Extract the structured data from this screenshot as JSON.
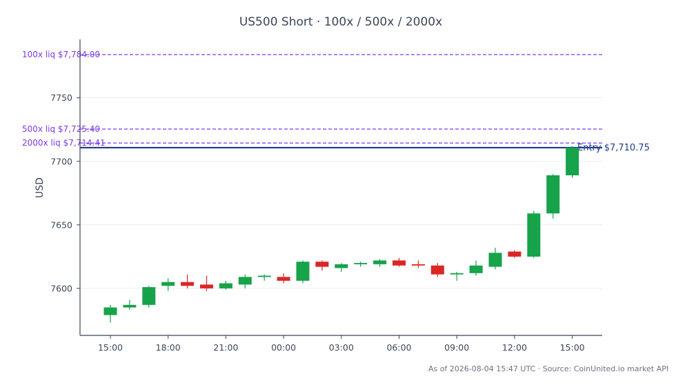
{
  "colors": {
    "up": "#16a34a",
    "down": "#dc2626",
    "liq": "#7c3aed",
    "entry": "#1e3a8a",
    "text": "#3b4557",
    "footer": "#6b7280",
    "grid": "#e5e7eb",
    "axis": "#3b4557"
  },
  "chart_data": {
    "type": "candlestick",
    "title": "US500 Short · 100x / 500x / 2000x",
    "ylabel": "USD",
    "footer": "As of 2026-08-04 15:47 UTC · Source: CoinUnited.io market API",
    "ylim": [
      7563,
      7796
    ],
    "y_ticks": [
      7600,
      7650,
      7700,
      7750
    ],
    "x_ticks": [
      "15:00",
      "18:00",
      "21:00",
      "00:00",
      "03:00",
      "06:00",
      "09:00",
      "12:00",
      "15:00"
    ],
    "x_tick_candle_index": [
      0,
      3,
      6,
      9,
      12,
      15,
      18,
      21,
      24
    ],
    "grid": true,
    "levels": [
      {
        "label": "100x liq $7,784.00",
        "value": 7784.0,
        "kind": "liq"
      },
      {
        "label": "500x liq $7,725.40",
        "value": 7725.4,
        "kind": "liq"
      },
      {
        "label": "2000x liq $7,714.41",
        "value": 7714.41,
        "kind": "liq"
      },
      {
        "label": "Entry $7,710.75",
        "value": 7710.75,
        "kind": "entry"
      }
    ],
    "candles": [
      {
        "o": 7579,
        "h": 7587,
        "l": 7573,
        "c": 7585
      },
      {
        "o": 7585,
        "h": 7591,
        "l": 7583,
        "c": 7587
      },
      {
        "o": 7587,
        "h": 7602,
        "l": 7585,
        "c": 7601
      },
      {
        "o": 7602,
        "h": 7608,
        "l": 7598,
        "c": 7605
      },
      {
        "o": 7605,
        "h": 7611,
        "l": 7600,
        "c": 7602
      },
      {
        "o": 7603,
        "h": 7610,
        "l": 7598,
        "c": 7600
      },
      {
        "o": 7600,
        "h": 7606,
        "l": 7599,
        "c": 7604
      },
      {
        "o": 7603,
        "h": 7611,
        "l": 7600,
        "c": 7609
      },
      {
        "o": 7609,
        "h": 7611,
        "l": 7606,
        "c": 7610
      },
      {
        "o": 7609,
        "h": 7612,
        "l": 7604,
        "c": 7606
      },
      {
        "o": 7606,
        "h": 7622,
        "l": 7604,
        "c": 7621
      },
      {
        "o": 7621,
        "h": 7622,
        "l": 7614,
        "c": 7617
      },
      {
        "o": 7616,
        "h": 7620,
        "l": 7613,
        "c": 7619
      },
      {
        "o": 7619,
        "h": 7621,
        "l": 7617,
        "c": 7620
      },
      {
        "o": 7619,
        "h": 7623,
        "l": 7617,
        "c": 7622
      },
      {
        "o": 7622,
        "h": 7624,
        "l": 7617,
        "c": 7618
      },
      {
        "o": 7619,
        "h": 7622,
        "l": 7616,
        "c": 7618
      },
      {
        "o": 7618,
        "h": 7620,
        "l": 7609,
        "c": 7611
      },
      {
        "o": 7611,
        "h": 7613,
        "l": 7606,
        "c": 7612
      },
      {
        "o": 7612,
        "h": 7622,
        "l": 7610,
        "c": 7618
      },
      {
        "o": 7617,
        "h": 7632,
        "l": 7615,
        "c": 7628
      },
      {
        "o": 7629,
        "h": 7630,
        "l": 7624,
        "c": 7625
      },
      {
        "o": 7625,
        "h": 7661,
        "l": 7624,
        "c": 7659
      },
      {
        "o": 7659,
        "h": 7690,
        "l": 7655,
        "c": 7689
      },
      {
        "o": 7689,
        "h": 7712,
        "l": 7687,
        "c": 7710.75
      }
    ]
  }
}
